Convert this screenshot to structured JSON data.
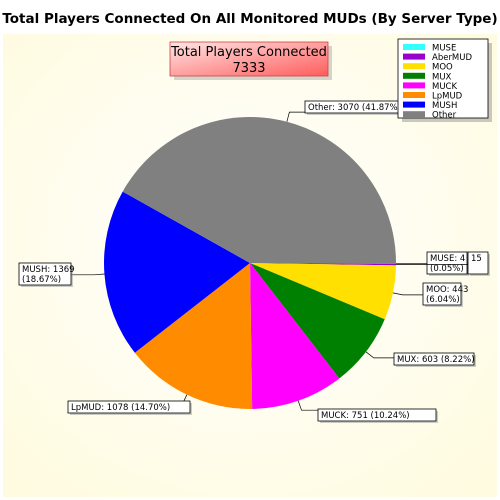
{
  "chart_data": {
    "type": "pie",
    "title": "Total Players Connected On All Monitored MUDs (By Server Type)",
    "total_box": {
      "label": "Total Players Connected",
      "value": "7333"
    },
    "legend_position": "top-right",
    "slices": [
      {
        "name": "MUSE",
        "value": 4,
        "label": "MUSE: 4",
        "pct_label": "(0.05%)",
        "color": "#33ffff"
      },
      {
        "name": "AberMUD",
        "value": 15,
        "label": "15",
        "pct_label": "",
        "color": "#9900cc"
      },
      {
        "name": "MOO",
        "value": 443,
        "label": "MOO: 443",
        "pct_label": "(6.04%)",
        "color": "#ffe000"
      },
      {
        "name": "MUX",
        "value": 603,
        "label": "MUX: 603 (8.22%)",
        "pct_label": "",
        "color": "#008000"
      },
      {
        "name": "MUCK",
        "value": 751,
        "label": "MUCK: 751 (10.24%)",
        "pct_label": "",
        "color": "#ff00ff"
      },
      {
        "name": "LpMUD",
        "value": 1078,
        "label": "LpMUD: 1078 (14.70%)",
        "pct_label": "",
        "color": "#ff8c00"
      },
      {
        "name": "MUSH",
        "value": 1369,
        "label": "MUSH: 1369",
        "pct_label": "(18.67%)",
        "color": "#0000ff"
      },
      {
        "name": "Other",
        "value": 3070,
        "label": "Other: 3070 (41.87%)",
        "pct_label": "",
        "color": "#808080"
      }
    ]
  }
}
